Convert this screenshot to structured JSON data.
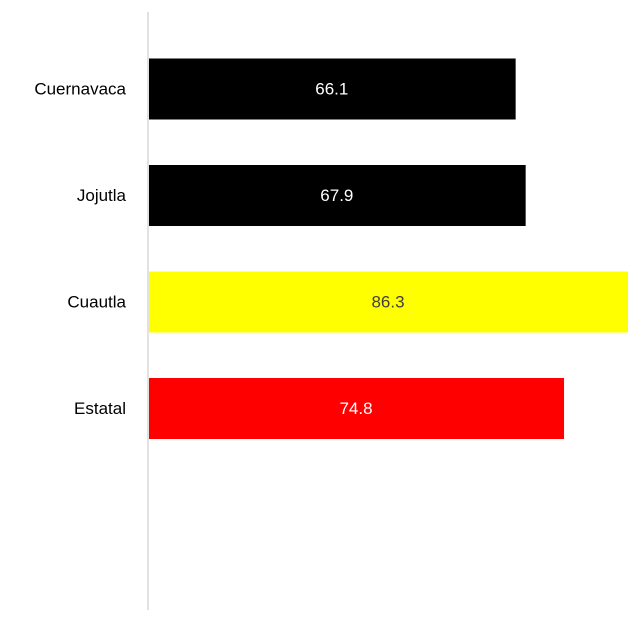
{
  "chart_data": {
    "type": "bar",
    "orientation": "horizontal",
    "categories": [
      "Cuernavaca",
      "Jojutla",
      "Cuautla",
      "Estatal"
    ],
    "values": [
      66.1,
      67.9,
      86.3,
      74.8
    ],
    "value_labels": [
      "66.1",
      "67.9",
      "86.3",
      "74.8"
    ],
    "bar_colors": [
      "#000000",
      "#000000",
      "#ffff00",
      "#ff0000"
    ],
    "value_label_colors": [
      "#ffffff",
      "#ffffff",
      "#404040",
      "#ffffff"
    ],
    "title": "",
    "xlabel": "",
    "ylabel": "",
    "xlim": [
      0,
      86.3
    ],
    "grid": false,
    "legend": "none",
    "axis_line_color": "#d9d9d9",
    "category_label_color": "#000000"
  }
}
